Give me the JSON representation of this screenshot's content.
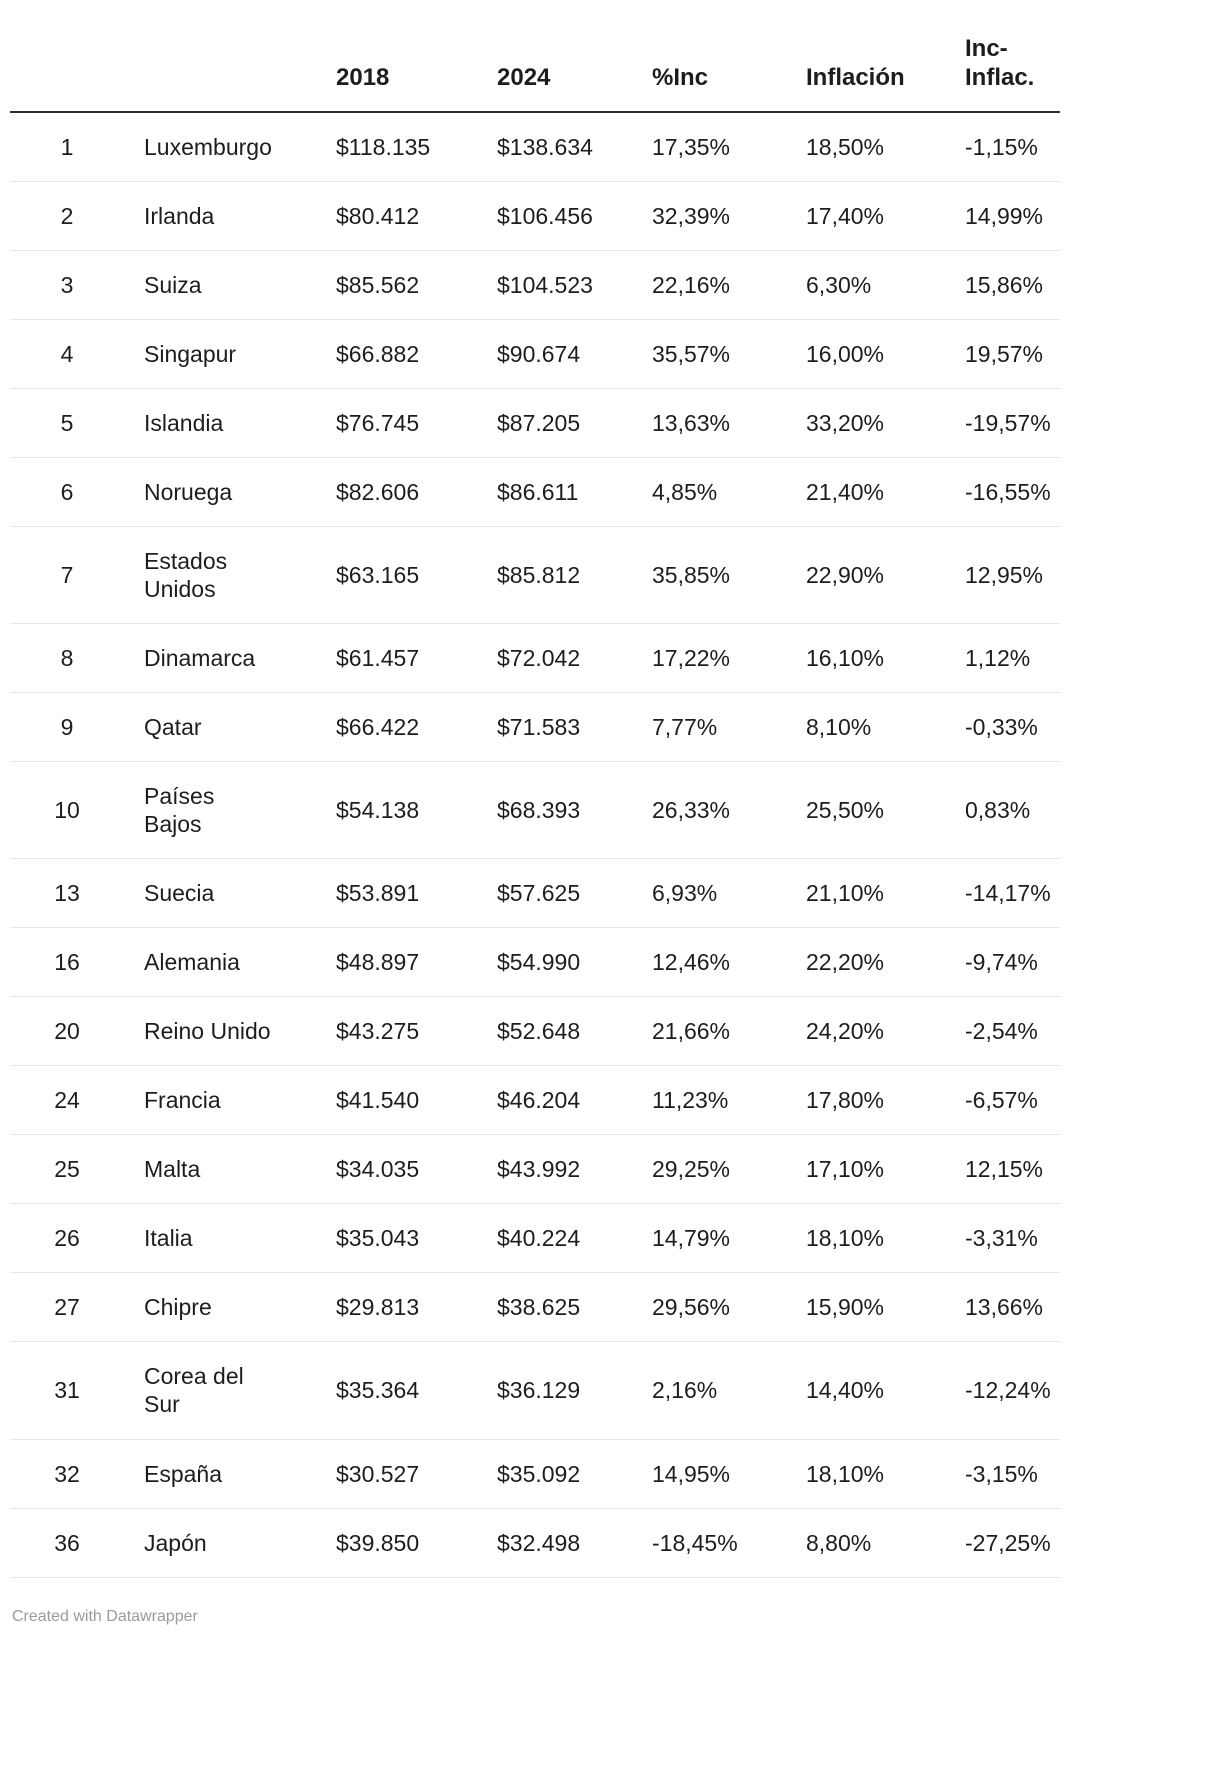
{
  "chart_data": {
    "type": "table",
    "title": "",
    "columns": [
      "",
      "",
      "2018",
      "2024",
      "%Inc",
      "Inflación",
      "Inc-Inflac."
    ],
    "rows": [
      {
        "rank": "1",
        "country": "Luxemburgo",
        "y2018": "$118.135",
        "y2024": "$138.634",
        "inc": "17,35%",
        "inflacion": "18,50%",
        "diff": "-1,15%"
      },
      {
        "rank": "2",
        "country": "Irlanda",
        "y2018": "$80.412",
        "y2024": "$106.456",
        "inc": "32,39%",
        "inflacion": "17,40%",
        "diff": "14,99%"
      },
      {
        "rank": "3",
        "country": "Suiza",
        "y2018": "$85.562",
        "y2024": "$104.523",
        "inc": "22,16%",
        "inflacion": "6,30%",
        "diff": "15,86%"
      },
      {
        "rank": "4",
        "country": "Singapur",
        "y2018": "$66.882",
        "y2024": "$90.674",
        "inc": "35,57%",
        "inflacion": "16,00%",
        "diff": "19,57%"
      },
      {
        "rank": "5",
        "country": "Islandia",
        "y2018": "$76.745",
        "y2024": "$87.205",
        "inc": "13,63%",
        "inflacion": "33,20%",
        "diff": "-19,57%"
      },
      {
        "rank": "6",
        "country": "Noruega",
        "y2018": "$82.606",
        "y2024": "$86.611",
        "inc": "4,85%",
        "inflacion": "21,40%",
        "diff": "-16,55%"
      },
      {
        "rank": "7",
        "country": "Estados\nUnidos",
        "y2018": "$63.165",
        "y2024": "$85.812",
        "inc": "35,85%",
        "inflacion": "22,90%",
        "diff": "12,95%"
      },
      {
        "rank": "8",
        "country": "Dinamarca",
        "y2018": "$61.457",
        "y2024": "$72.042",
        "inc": "17,22%",
        "inflacion": "16,10%",
        "diff": "1,12%"
      },
      {
        "rank": "9",
        "country": "Qatar",
        "y2018": "$66.422",
        "y2024": "$71.583",
        "inc": "7,77%",
        "inflacion": "8,10%",
        "diff": "-0,33%"
      },
      {
        "rank": "10",
        "country": "Países\nBajos",
        "y2018": "$54.138",
        "y2024": "$68.393",
        "inc": "26,33%",
        "inflacion": "25,50%",
        "diff": "0,83%"
      },
      {
        "rank": "13",
        "country": "Suecia",
        "y2018": "$53.891",
        "y2024": "$57.625",
        "inc": "6,93%",
        "inflacion": "21,10%",
        "diff": "-14,17%"
      },
      {
        "rank": "16",
        "country": "Alemania",
        "y2018": "$48.897",
        "y2024": "$54.990",
        "inc": "12,46%",
        "inflacion": "22,20%",
        "diff": "-9,74%"
      },
      {
        "rank": "20",
        "country": "Reino Unido",
        "y2018": "$43.275",
        "y2024": "$52.648",
        "inc": "21,66%",
        "inflacion": "24,20%",
        "diff": "-2,54%"
      },
      {
        "rank": "24",
        "country": "Francia",
        "y2018": "$41.540",
        "y2024": "$46.204",
        "inc": "11,23%",
        "inflacion": "17,80%",
        "diff": "-6,57%"
      },
      {
        "rank": "25",
        "country": "Malta",
        "y2018": "$34.035",
        "y2024": "$43.992",
        "inc": "29,25%",
        "inflacion": "17,10%",
        "diff": "12,15%"
      },
      {
        "rank": "26",
        "country": "Italia",
        "y2018": "$35.043",
        "y2024": "$40.224",
        "inc": "14,79%",
        "inflacion": "18,10%",
        "diff": "-3,31%"
      },
      {
        "rank": "27",
        "country": "Chipre",
        "y2018": "$29.813",
        "y2024": "$38.625",
        "inc": "29,56%",
        "inflacion": "15,90%",
        "diff": "13,66%"
      },
      {
        "rank": "31",
        "country": "Corea del\nSur",
        "y2018": "$35.364",
        "y2024": "$36.129",
        "inc": "2,16%",
        "inflacion": "14,40%",
        "diff": "-12,24%"
      },
      {
        "rank": "32",
        "country": "España",
        "y2018": "$30.527",
        "y2024": "$35.092",
        "inc": "14,95%",
        "inflacion": "18,10%",
        "diff": "-3,15%"
      },
      {
        "rank": "36",
        "country": "Japón",
        "y2018": "$39.850",
        "y2024": "$32.498",
        "inc": "-18,45%",
        "inflacion": "8,80%",
        "diff": "-27,25%"
      }
    ]
  },
  "footer": {
    "credit": "Created with Datawrapper"
  },
  "colors": {
    "text": "#1d1d1d",
    "header_border": "#2b2b2b",
    "row_border": "#e7e7e7",
    "footer_text": "#9b9b9b",
    "background": "#ffffff"
  }
}
